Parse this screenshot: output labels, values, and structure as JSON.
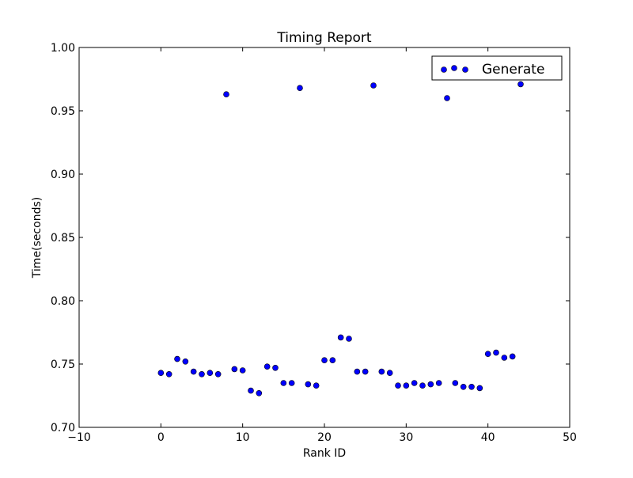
{
  "chart_data": {
    "type": "scatter",
    "title": "Timing Report",
    "xlabel": "Rank ID",
    "ylabel": "Time(seconds)",
    "xlim": [
      -10,
      50
    ],
    "ylim": [
      0.7,
      1.0
    ],
    "x_ticks": [
      -10,
      0,
      10,
      20,
      30,
      40,
      50
    ],
    "x_tick_labels": [
      "−10",
      "0",
      "10",
      "20",
      "30",
      "40",
      "50"
    ],
    "y_ticks": [
      0.7,
      0.75,
      0.8,
      0.85,
      0.9,
      0.95,
      1.0
    ],
    "y_tick_labels": [
      "0.70",
      "0.75",
      "0.80",
      "0.85",
      "0.90",
      "0.95",
      "1.00"
    ],
    "grid": false,
    "legend_position": "top-right",
    "series": [
      {
        "name": "Generate",
        "color": "#0000ff",
        "edge_color": "#000000",
        "marker": "circle",
        "x": [
          0,
          1,
          2,
          3,
          4,
          5,
          6,
          7,
          8,
          9,
          10,
          11,
          12,
          13,
          14,
          15,
          16,
          17,
          18,
          19,
          20,
          21,
          22,
          23,
          24,
          25,
          26,
          27,
          28,
          29,
          30,
          31,
          32,
          33,
          34,
          35,
          36,
          37,
          38,
          39,
          40,
          41,
          42,
          43,
          44
        ],
        "y": [
          0.743,
          0.742,
          0.754,
          0.752,
          0.744,
          0.742,
          0.743,
          0.742,
          0.963,
          0.746,
          0.745,
          0.729,
          0.727,
          0.748,
          0.747,
          0.735,
          0.735,
          0.968,
          0.734,
          0.733,
          0.753,
          0.753,
          0.771,
          0.77,
          0.744,
          0.744,
          0.97,
          0.744,
          0.743,
          0.733,
          0.733,
          0.735,
          0.733,
          0.734,
          0.735,
          0.96,
          0.735,
          0.732,
          0.732,
          0.731,
          0.758,
          0.759,
          0.755,
          0.756,
          0.971
        ]
      }
    ]
  }
}
